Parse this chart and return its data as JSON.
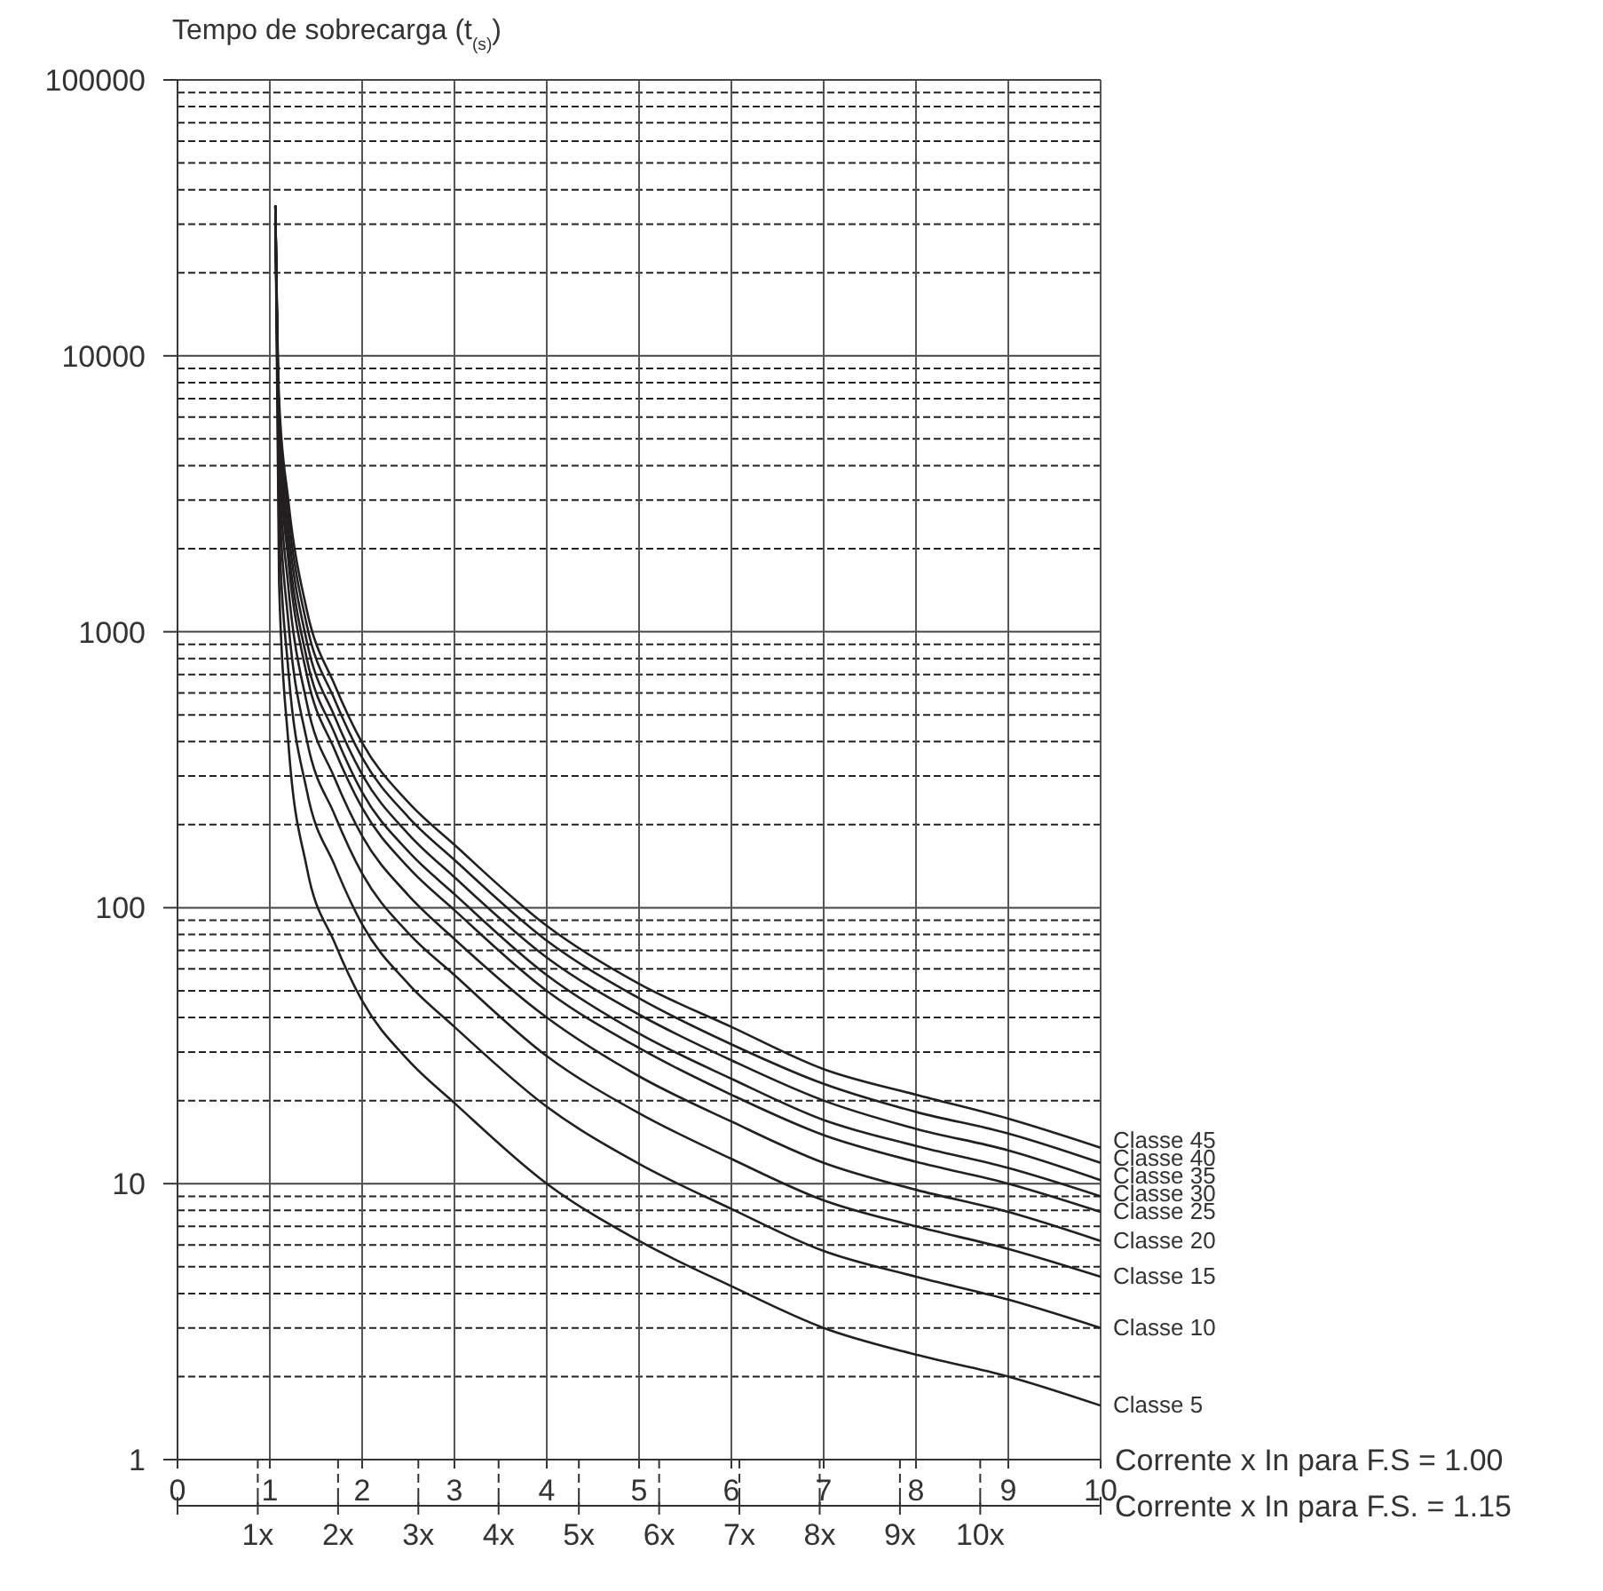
{
  "chart_data": {
    "type": "line",
    "ylabel": "Tempo de sobrecarga (t$_{(s)}$)",
    "xlabel": "Corrente x In para F.S = 1.00",
    "x2label": "Corrente x In para F.S. = 1.15",
    "log": "y",
    "grid": true,
    "marker": "none",
    "line_style": "solid",
    "xlim": [
      0,
      10
    ],
    "xticks": [
      0,
      1,
      2,
      3,
      4,
      5,
      6,
      7,
      8,
      9,
      10
    ],
    "x2lim": [
      0,
      11.5
    ],
    "x2ticks": [
      {
        "value": 0,
        "label": null
      },
      {
        "value": 1,
        "label": "1x"
      },
      {
        "value": 2,
        "label": "2x"
      },
      {
        "value": 3,
        "label": "3x"
      },
      {
        "value": 4,
        "label": "4x"
      },
      {
        "value": 5,
        "label": "5x"
      },
      {
        "value": 6,
        "label": "6x"
      },
      {
        "value": 7,
        "label": "7x"
      },
      {
        "value": 8,
        "label": "8x"
      },
      {
        "value": 9,
        "label": "9x"
      },
      {
        "value": 10,
        "label": "10x"
      },
      {
        "value": 11.5,
        "label": null
      }
    ],
    "ylim": [
      1,
      100000
    ],
    "yticks": [
      1,
      10,
      100,
      1000,
      10000,
      100000
    ],
    "x": [
      1.06,
      1.1,
      1.2,
      1.4,
      1.7,
      2,
      2.5,
      3,
      4,
      5,
      6,
      7,
      8,
      9,
      10
    ],
    "series": [
      {
        "name": "Classe 5",
        "color": "#231f20",
        "values": [
          35000,
          1500,
          400,
          140,
          75,
          46,
          28,
          19.6,
          10,
          6.2,
          4.25,
          3.0,
          2.4,
          2.0,
          1.57
        ]
      },
      {
        "name": "Classe 10",
        "color": "#231f20",
        "values": [
          35000,
          2370,
          730,
          266,
          143,
          87,
          53,
          37,
          19,
          11.8,
          8.1,
          5.7,
          4.6,
          3.8,
          3.0
        ]
      },
      {
        "name": "Classe 15",
        "color": "#231f20",
        "values": [
          35000,
          3210,
          1090,
          406,
          218,
          133,
          81,
          57,
          29,
          18,
          12.3,
          8.7,
          7.0,
          5.8,
          4.6
        ]
      },
      {
        "name": "Classe 20",
        "color": "#231f20",
        "values": [
          35000,
          4000,
          1460,
          553,
          296,
          182,
          111,
          77,
          40,
          24.5,
          16.8,
          11.9,
          9.5,
          7.9,
          6.2
        ]
      },
      {
        "name": "Classe 25",
        "color": "#231f20",
        "values": [
          35000,
          4740,
          1820,
          700,
          375,
          230,
          140,
          98,
          50,
          31,
          21,
          15,
          12,
          10,
          7.9
        ]
      },
      {
        "name": "Classe 30",
        "color": "#231f20",
        "values": [
          35000,
          5220,
          2060,
          800,
          430,
          262,
          160,
          112,
          57,
          35,
          24,
          17,
          13.7,
          11.4,
          9.0
        ]
      },
      {
        "name": "Classe 35",
        "color": "#231f20",
        "values": [
          35000,
          5790,
          2360,
          924,
          495,
          304,
          185,
          129,
          66,
          41,
          28,
          20,
          15.8,
          13.2,
          10.3
        ]
      },
      {
        "name": "Classe 40",
        "color": "#231f20",
        "values": [
          35000,
          6400,
          2680,
          1060,
          570,
          350,
          213,
          149,
          76,
          47,
          32,
          23,
          18.2,
          15.2,
          11.9
        ]
      },
      {
        "name": "Classe 45",
        "color": "#231f20",
        "values": [
          35000,
          7000,
          3000,
          1200,
          645,
          396,
          241,
          169,
          86,
          53,
          37,
          26,
          21,
          17.2,
          13.5
        ]
      }
    ]
  }
}
